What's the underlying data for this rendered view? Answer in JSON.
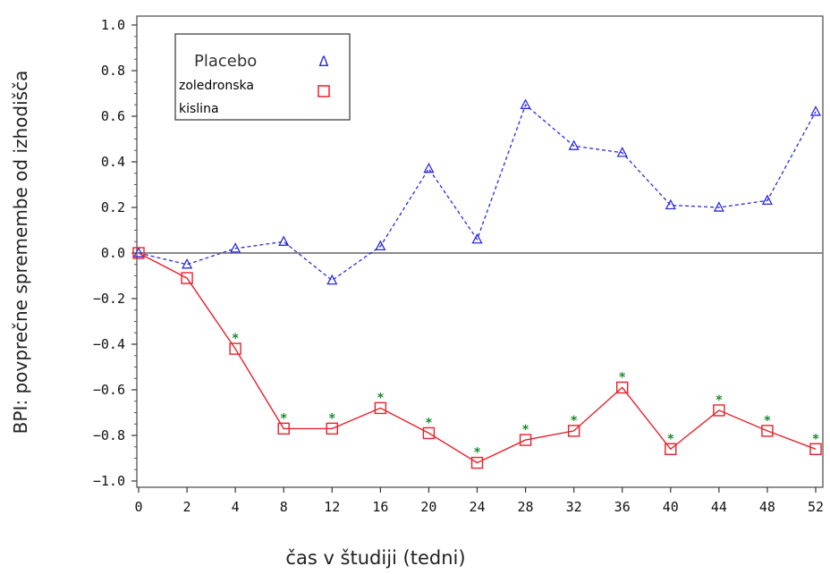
{
  "chart_data": {
    "type": "line",
    "xlabel": "čas v študiji (tedni)",
    "ylabel": "BPI: povprečne spremembe od izhodišča",
    "categories": [
      "0",
      "2",
      "4",
      "8",
      "12",
      "16",
      "20",
      "24",
      "28",
      "32",
      "36",
      "40",
      "44",
      "48",
      "52"
    ],
    "ylim": [
      -1.0,
      1.0
    ],
    "yticks": [
      "1.0",
      "0.8",
      "0.6",
      "0.4",
      "0.2",
      "0.0",
      "−0.2",
      "−0.4",
      "−0.6",
      "−0.8",
      "−1.0"
    ],
    "ytick_values": [
      1.0,
      0.8,
      0.6,
      0.4,
      0.2,
      0.0,
      -0.2,
      -0.4,
      -0.6,
      -0.8,
      -1.0
    ],
    "series": [
      {
        "name": "Placebo",
        "values": [
          0.0,
          -0.05,
          0.02,
          0.05,
          -0.12,
          0.03,
          0.37,
          0.06,
          0.65,
          0.47,
          0.44,
          0.21,
          0.2,
          0.23,
          0.62
        ],
        "color": "#2b2bdc",
        "marker": "triangle",
        "line": "dashed"
      },
      {
        "name": "zoledronska kislina",
        "values": [
          0.0,
          -0.11,
          -0.42,
          -0.77,
          -0.77,
          -0.68,
          -0.79,
          -0.92,
          -0.82,
          -0.78,
          -0.59,
          -0.86,
          -0.69,
          -0.78,
          -0.86
        ],
        "color": "#e8202a",
        "marker": "square",
        "line": "solid",
        "significant": [
          false,
          false,
          true,
          true,
          true,
          true,
          true,
          true,
          true,
          true,
          true,
          true,
          true,
          true,
          true
        ]
      }
    ],
    "significance_marker": "*",
    "significance_color": "#1a8a2a",
    "reference_line_y": 0.0,
    "legend": {
      "position": "top-left",
      "entries": [
        {
          "label_lines": [
            "Placebo"
          ],
          "marker": "Δ"
        },
        {
          "label_lines": [
            "zoledronska",
            "kislina"
          ],
          "marker": "square"
        }
      ]
    }
  }
}
